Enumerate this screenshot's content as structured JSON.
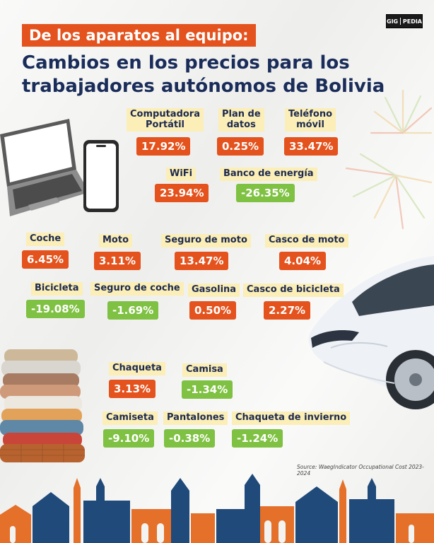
{
  "header": {
    "tag": "De los aparatos al equipo:",
    "title_line1": "Cambios en los precios para los",
    "title_line2": "trabajadores autónomos de Bolivia"
  },
  "logo": {
    "left": "GIG",
    "right": "PEDIA"
  },
  "colors": {
    "increase": "#e4521d",
    "decrease": "#7fc142",
    "label_bg": "#fbeeb7",
    "title": "#1a2d5a"
  },
  "items": [
    {
      "label_line1": "Computadora",
      "label_line2": "Portátil",
      "value": "17.92%",
      "trend": "up"
    },
    {
      "label_line1": "Plan de",
      "label_line2": "datos",
      "value": "0.25%",
      "trend": "up"
    },
    {
      "label_line1": "Teléfono",
      "label_line2": "móvil",
      "value": "33.47%",
      "trend": "up"
    },
    {
      "label_line1": "WiFi",
      "value": "23.94%",
      "trend": "up"
    },
    {
      "label_line1": "Banco de energía",
      "value": "-26.35%",
      "trend": "down"
    },
    {
      "label_line1": "Coche",
      "value": "6.45%",
      "trend": "up"
    },
    {
      "label_line1": "Moto",
      "value": "3.11%",
      "trend": "up"
    },
    {
      "label_line1": "Seguro de moto",
      "value": "13.47%",
      "trend": "up"
    },
    {
      "label_line1": "Casco de moto",
      "value": "4.04%",
      "trend": "up"
    },
    {
      "label_line1": "Bicicleta",
      "value": "-19.08%",
      "trend": "down"
    },
    {
      "label_line1": "Seguro de coche",
      "value": "-1.69%",
      "trend": "down"
    },
    {
      "label_line1": "Gasolina",
      "value": "0.50%",
      "trend": "up"
    },
    {
      "label_line1": "Casco de bicicleta",
      "value": "2.27%",
      "trend": "up"
    },
    {
      "label_line1": "Chaqueta",
      "value": "3.13%",
      "trend": "up"
    },
    {
      "label_line1": "Camisa",
      "value": "-1.34%",
      "trend": "down"
    },
    {
      "label_line1": "Camiseta",
      "value": "-9.10%",
      "trend": "down"
    },
    {
      "label_line1": "Pantalones",
      "value": "-0.38%",
      "trend": "down"
    },
    {
      "label_line1": "Chaqueta de invierno",
      "value": "-1.24%",
      "trend": "down"
    }
  ],
  "source": "Source: WaegIndicator Occupational Cost 2023-2024",
  "icons": [
    "laptop-icon",
    "smartphone-icon",
    "car-illustration",
    "clothes-stack-illustration",
    "fireworks-decoration",
    "city-skyline-decoration"
  ]
}
